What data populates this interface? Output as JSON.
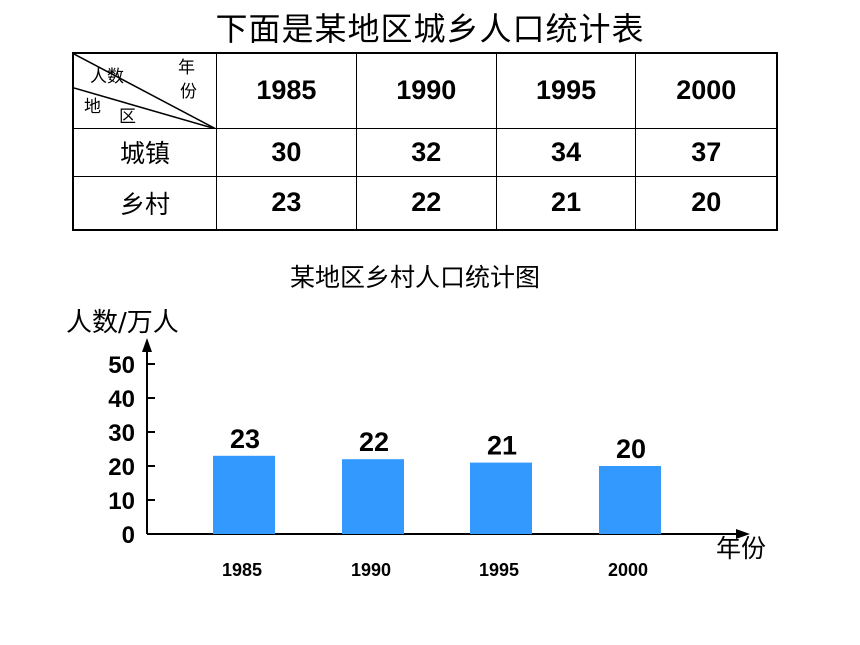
{
  "table": {
    "title": "下面是某地区城乡人口统计表",
    "corner": {
      "top_left": "人数",
      "top_right_1": "年",
      "top_right_2": "份",
      "bottom_left_1": "地",
      "bottom_left_2": "区"
    },
    "years": [
      "1985",
      "1990",
      "1995",
      "2000"
    ],
    "rows": [
      {
        "label": "城镇",
        "values": [
          "30",
          "32",
          "34",
          "37"
        ]
      },
      {
        "label": "乡村",
        "values": [
          "23",
          "22",
          "21",
          "20"
        ]
      }
    ]
  },
  "chart_data": {
    "type": "bar",
    "title": "某地区乡村人口统计图",
    "ylabel": "人数/万人",
    "xlabel": "年份",
    "categories": [
      "1985",
      "1990",
      "1995",
      "2000"
    ],
    "values": [
      23,
      22,
      21,
      20
    ],
    "yticks": [
      0,
      10,
      20,
      30,
      40,
      50
    ],
    "ylim": [
      0,
      50
    ],
    "bar_color": "#3399ff",
    "grid": false
  }
}
